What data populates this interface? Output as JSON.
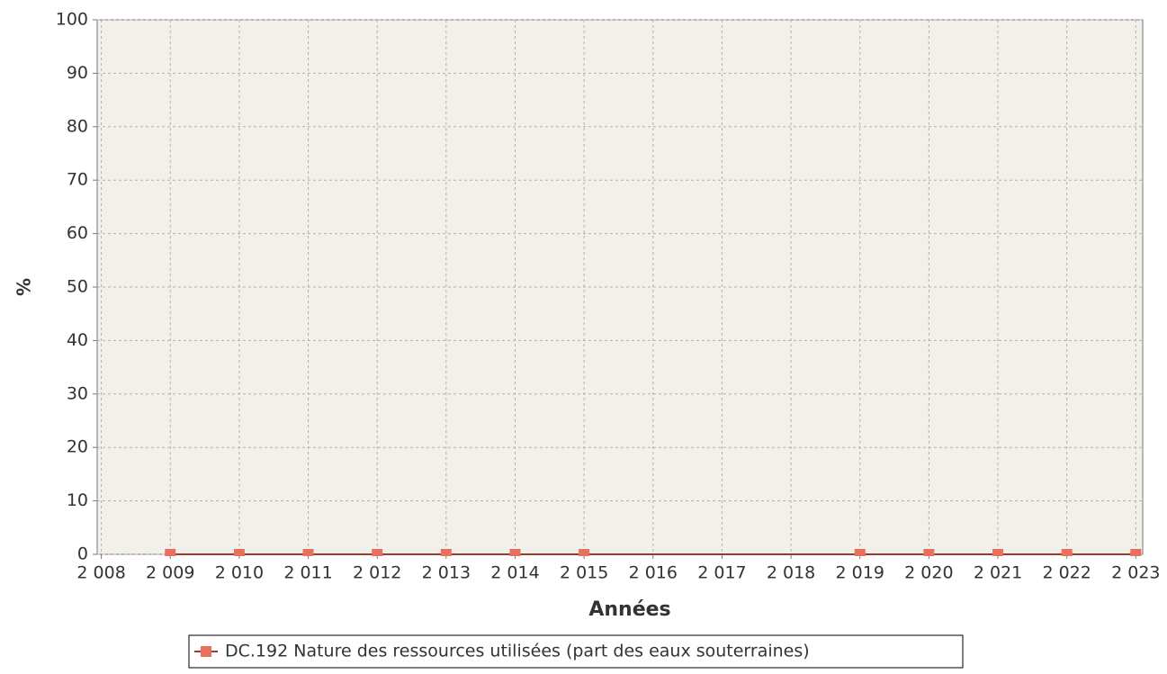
{
  "chart_data": {
    "type": "line",
    "xlabel": "Années",
    "ylabel": "%",
    "x": [
      2009,
      2010,
      2011,
      2012,
      2013,
      2014,
      2015,
      2019,
      2020,
      2021,
      2022,
      2023
    ],
    "series": [
      {
        "name": "DC.192 Nature des ressources utilisées (part des eaux souterraines)",
        "color": "#e8705f",
        "line_color": "#9c3a2e",
        "values": [
          0,
          0,
          0,
          0,
          0,
          0,
          0,
          0,
          0,
          0,
          0,
          0
        ]
      }
    ],
    "xlim": [
      2007.94,
      2023.1
    ],
    "xticks": [
      {
        "value": 2008,
        "label": "2 008"
      },
      {
        "value": 2009,
        "label": "2 009"
      },
      {
        "value": 2010,
        "label": "2 010"
      },
      {
        "value": 2011,
        "label": "2 011"
      },
      {
        "value": 2012,
        "label": "2 012"
      },
      {
        "value": 2013,
        "label": "2 013"
      },
      {
        "value": 2014,
        "label": "2 014"
      },
      {
        "value": 2015,
        "label": "2 015"
      },
      {
        "value": 2016,
        "label": "2 016"
      },
      {
        "value": 2017,
        "label": "2 017"
      },
      {
        "value": 2018,
        "label": "2 018"
      },
      {
        "value": 2019,
        "label": "2 019"
      },
      {
        "value": 2020,
        "label": "2 020"
      },
      {
        "value": 2021,
        "label": "2 021"
      },
      {
        "value": 2022,
        "label": "2 022"
      },
      {
        "value": 2023,
        "label": "2 023"
      }
    ],
    "ylim": [
      0,
      100
    ],
    "yticks": [
      0,
      10,
      20,
      30,
      40,
      50,
      60,
      70,
      80,
      90,
      100
    ],
    "grid": true
  }
}
